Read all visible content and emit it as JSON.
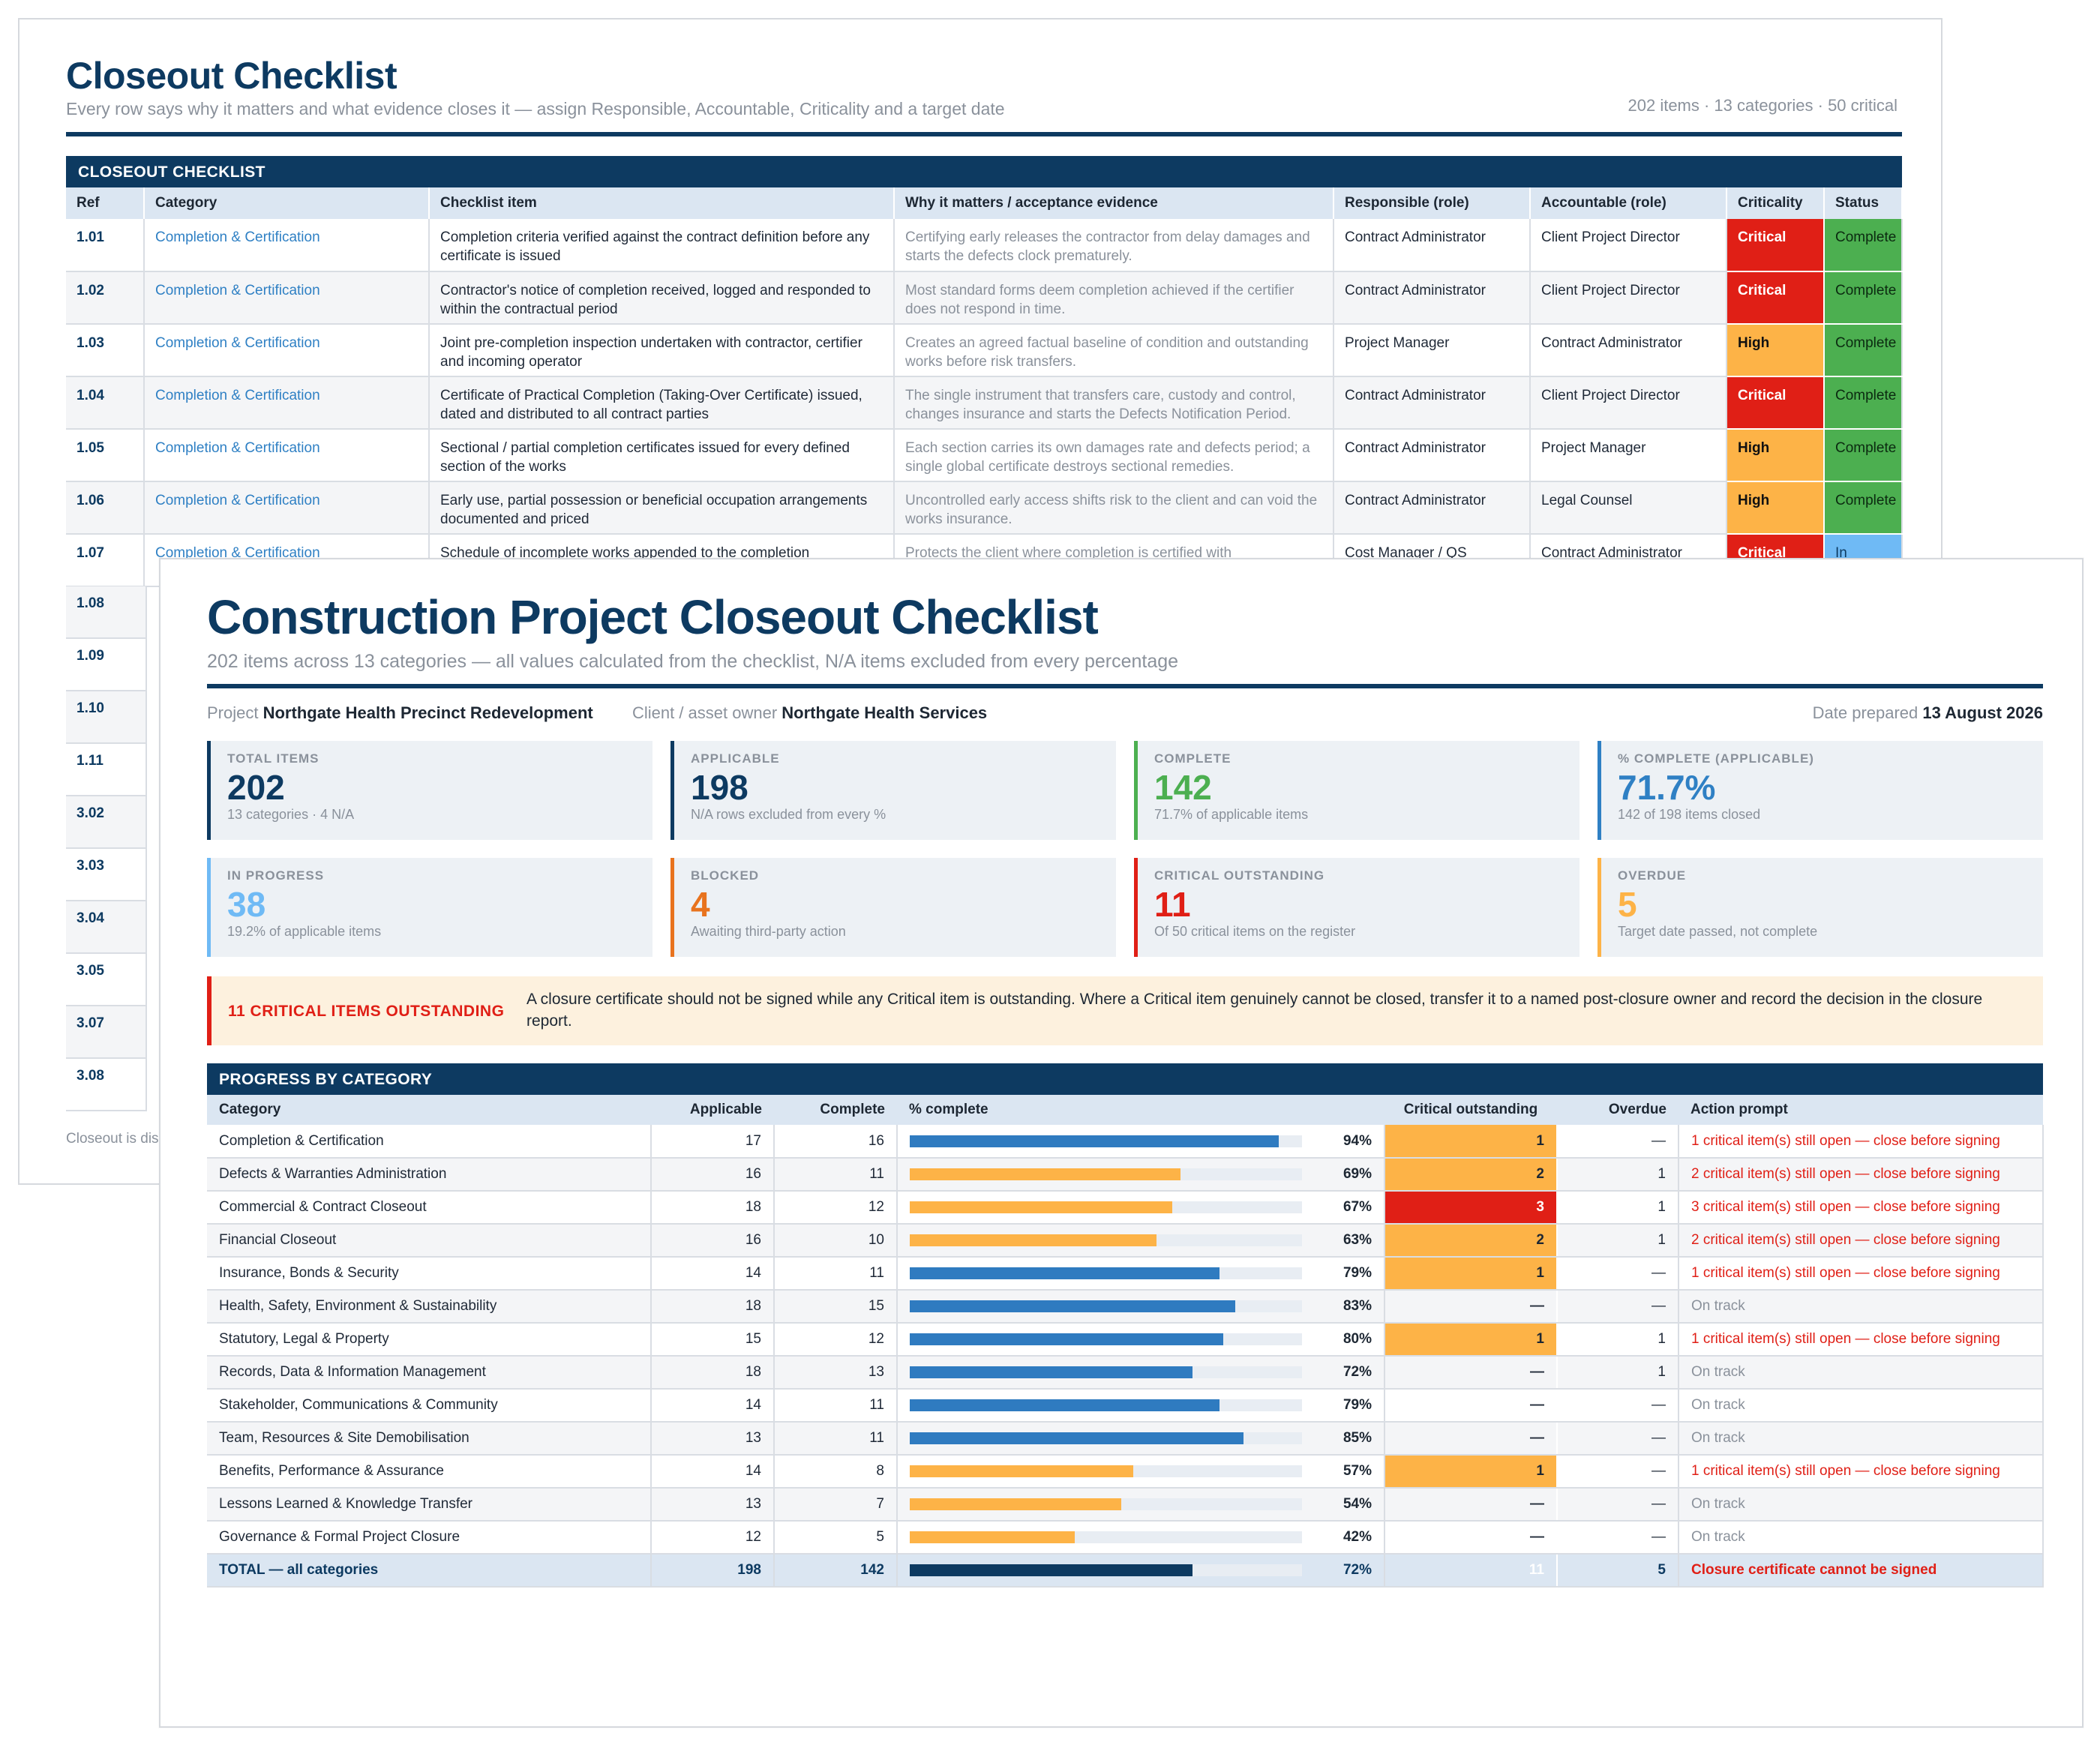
{
  "back": {
    "title": "Closeout Checklist",
    "subtitle": "Every row says why it matters and what evidence closes it — assign Responsible, Accountable, Criticality and a target date",
    "meta": "202 items · 13 categories · 50 critical",
    "section": "CLOSEOUT CHECKLIST",
    "headers": [
      "Ref",
      "Category",
      "Checklist item",
      "Why it matters / acceptance evidence",
      "Responsible (role)",
      "Accountable (role)",
      "Criticality",
      "Status"
    ],
    "rows": [
      {
        "ref": "1.01",
        "cat": "Completion & Certification",
        "item": "Completion criteria verified against the contract definition before any certificate is issued",
        "why": "Certifying early releases the contractor from delay damages and starts the defects clock prematurely.",
        "resp": "Contract Administrator",
        "acc": "Client Project Director",
        "crit": "Critical",
        "status": "Complete"
      },
      {
        "ref": "1.02",
        "cat": "Completion & Certification",
        "item": "Contractor's notice of completion received, logged and responded to within the contractual period",
        "why": "Most standard forms deem completion achieved if the certifier does not respond in time.",
        "resp": "Contract Administrator",
        "acc": "Client Project Director",
        "crit": "Critical",
        "status": "Complete"
      },
      {
        "ref": "1.03",
        "cat": "Completion & Certification",
        "item": "Joint pre-completion inspection undertaken with contractor, certifier and incoming operator",
        "why": "Creates an agreed factual baseline of condition and outstanding works before risk transfers.",
        "resp": "Project Manager",
        "acc": "Contract Administrator",
        "crit": "High",
        "status": "Complete"
      },
      {
        "ref": "1.04",
        "cat": "Completion & Certification",
        "item": "Certificate of Practical Completion (Taking-Over Certificate) issued, dated and distributed to all contract parties",
        "why": "The single instrument that transfers care, custody and control, changes insurance and starts the Defects Notification Period.",
        "resp": "Contract Administrator",
        "acc": "Client Project Director",
        "crit": "Critical",
        "status": "Complete"
      },
      {
        "ref": "1.05",
        "cat": "Completion & Certification",
        "item": "Sectional / partial completion certificates issued for every defined section of the works",
        "why": "Each section carries its own damages rate and defects period; a single global certificate destroys sectional remedies.",
        "resp": "Contract Administrator",
        "acc": "Project Manager",
        "crit": "High",
        "status": "Complete"
      },
      {
        "ref": "1.06",
        "cat": "Completion & Certification",
        "item": "Early use, partial possession or beneficial occupation arrangements documented and priced",
        "why": "Uncontrolled early access shifts risk to the client and can void the works insurance.",
        "resp": "Contract Administrator",
        "acc": "Legal Counsel",
        "crit": "High",
        "status": "Complete"
      },
      {
        "ref": "1.07",
        "cat": "Completion & Certification",
        "item": "Schedule of incomplete works appended to the completion",
        "why": "Protects the client where completion is certified with",
        "resp": "Cost Manager / QS",
        "acc": "Contract Administrator",
        "crit": "Critical",
        "status": "In"
      }
    ],
    "more_refs": [
      "1.08",
      "1.09",
      "1.10",
      "1.11",
      "3.02",
      "3.03",
      "3.04",
      "3.05",
      "3.07",
      "3.08"
    ],
    "footer": "Closeout is dis"
  },
  "front": {
    "title": "Construction Project Closeout Checklist",
    "subtitle": "202 items across 13 categories — all values calculated from the checklist, N/A items excluded from every percentage",
    "project_label": "Project",
    "project": "Northgate Health Precinct Redevelopment",
    "client_label": "Client / asset owner",
    "client": "Northgate Health Services",
    "date_label": "Date prepared",
    "date": "13 August 2026",
    "kpis": [
      {
        "label": "TOTAL ITEMS",
        "value": "202",
        "note": "13 categories · 4 N/A",
        "color": "#0d3a61"
      },
      {
        "label": "APPLICABLE",
        "value": "198",
        "note": "N/A rows excluded from every %",
        "color": "#0d3a61"
      },
      {
        "label": "COMPLETE",
        "value": "142",
        "note": "71.7% of applicable items",
        "color": "#4caf50"
      },
      {
        "label": "% COMPLETE (APPLICABLE)",
        "value": "71.7%",
        "note": "142 of 198 items closed",
        "color": "#2f80c4"
      },
      {
        "label": "IN PROGRESS",
        "value": "38",
        "note": "19.2% of applicable items",
        "color": "#6fbaf5"
      },
      {
        "label": "BLOCKED",
        "value": "4",
        "note": "Awaiting third-party action",
        "color": "#e8731e"
      },
      {
        "label": "CRITICAL OUTSTANDING",
        "value": "11",
        "note": "Of 50 critical items on the register",
        "color": "#e01f16"
      },
      {
        "label": "OVERDUE",
        "value": "5",
        "note": "Target date passed, not complete",
        "color": "#fdb347"
      }
    ],
    "alert_head": "11 CRITICAL ITEMS OUTSTANDING",
    "alert_text": "A closure certificate should not be signed while any Critical item is outstanding. Where a Critical item genuinely cannot be closed, transfer it to a named post-closure owner and record the decision in the closure report.",
    "section": "PROGRESS BY CATEGORY",
    "headers": [
      "Category",
      "Applicable",
      "Complete",
      "% complete",
      "Critical outstanding",
      "Overdue",
      "Action prompt"
    ],
    "rows": [
      {
        "cat": "Completion & Certification",
        "app": "17",
        "comp": "16",
        "pct": 94,
        "pct_label": "94%",
        "crit": "1",
        "over": "—",
        "action": "1 critical item(s) still open — close before signing"
      },
      {
        "cat": "Defects & Warranties Administration",
        "app": "16",
        "comp": "11",
        "pct": 69,
        "pct_label": "69%",
        "crit": "2",
        "over": "1",
        "action": "2 critical item(s) still open — close before signing"
      },
      {
        "cat": "Commercial & Contract Closeout",
        "app": "18",
        "comp": "12",
        "pct": 67,
        "pct_label": "67%",
        "crit": "3",
        "over": "1",
        "action": "3 critical item(s) still open — close before signing"
      },
      {
        "cat": "Financial Closeout",
        "app": "16",
        "comp": "10",
        "pct": 63,
        "pct_label": "63%",
        "crit": "2",
        "over": "1",
        "action": "2 critical item(s) still open — close before signing"
      },
      {
        "cat": "Insurance, Bonds & Security",
        "app": "14",
        "comp": "11",
        "pct": 79,
        "pct_label": "79%",
        "crit": "1",
        "over": "—",
        "action": "1 critical item(s) still open — close before signing"
      },
      {
        "cat": "Health, Safety, Environment & Sustainability",
        "app": "18",
        "comp": "15",
        "pct": 83,
        "pct_label": "83%",
        "crit": "—",
        "over": "—",
        "action": "On track"
      },
      {
        "cat": "Statutory, Legal & Property",
        "app": "15",
        "comp": "12",
        "pct": 80,
        "pct_label": "80%",
        "crit": "1",
        "over": "1",
        "action": "1 critical item(s) still open — close before signing"
      },
      {
        "cat": "Records, Data & Information Management",
        "app": "18",
        "comp": "13",
        "pct": 72,
        "pct_label": "72%",
        "crit": "—",
        "over": "1",
        "action": "On track"
      },
      {
        "cat": "Stakeholder, Communications & Community",
        "app": "14",
        "comp": "11",
        "pct": 79,
        "pct_label": "79%",
        "crit": "—",
        "over": "—",
        "action": "On track"
      },
      {
        "cat": "Team, Resources & Site Demobilisation",
        "app": "13",
        "comp": "11",
        "pct": 85,
        "pct_label": "85%",
        "crit": "—",
        "over": "—",
        "action": "On track"
      },
      {
        "cat": "Benefits, Performance & Assurance",
        "app": "14",
        "comp": "8",
        "pct": 57,
        "pct_label": "57%",
        "crit": "1",
        "over": "—",
        "action": "1 critical item(s) still open — close before signing"
      },
      {
        "cat": "Lessons Learned & Knowledge Transfer",
        "app": "13",
        "comp": "7",
        "pct": 54,
        "pct_label": "54%",
        "crit": "—",
        "over": "—",
        "action": "On track"
      },
      {
        "cat": "Governance & Formal Project Closure",
        "app": "12",
        "comp": "5",
        "pct": 42,
        "pct_label": "42%",
        "crit": "—",
        "over": "—",
        "action": "On track"
      }
    ],
    "total": {
      "cat": "TOTAL — all categories",
      "app": "198",
      "comp": "142",
      "pct": 72,
      "pct_label": "72%",
      "crit": "11",
      "over": "5",
      "action": "Closure certificate cannot be signed"
    },
    "colors": {
      "blue_bar": "#2f7bc0",
      "amber_bar": "#fdb347",
      "navy_bar": "#0d3a61",
      "critical": "#e01f16",
      "high": "#fdb347"
    }
  }
}
